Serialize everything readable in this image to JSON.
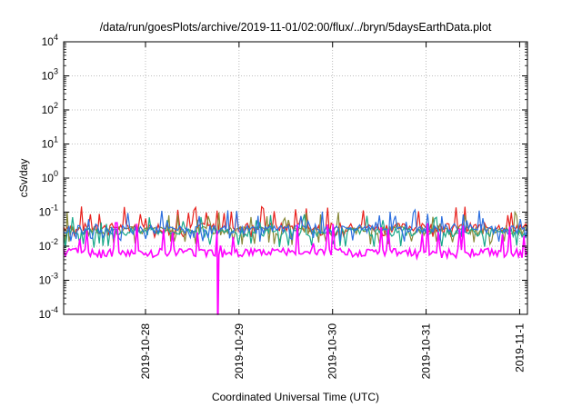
{
  "chart_data": {
    "type": "line",
    "title": "/data/run/goesPlots/archive/2019-11-01/02:00/flux/../bryn/5daysEarthData.plot",
    "xlabel": "Coordinated Universal Time (UTC)",
    "ylabel": "cSv/day",
    "yscale": "log",
    "ylim": [
      0.0001,
      10000
    ],
    "xlim": [
      "2019-10-27 03:00",
      "2019-11-01 02:00"
    ],
    "grid": true,
    "x_ticks": [
      {
        "date": "2019-10-28 00:00",
        "label": "2019-10-28"
      },
      {
        "date": "2019-10-29 00:00",
        "label": "2019-10-29"
      },
      {
        "date": "2019-10-30 00:00",
        "label": "2019-10-30"
      },
      {
        "date": "2019-10-31 00:00",
        "label": "2019-10-31"
      },
      {
        "date": "2019-11-01 00:00",
        "label": "2019-11-1"
      }
    ],
    "y_ticks": [
      {
        "value": 0.0001,
        "base": "10",
        "exp": "-4"
      },
      {
        "value": 0.001,
        "base": "10",
        "exp": "-3"
      },
      {
        "value": 0.01,
        "base": "10",
        "exp": "-2"
      },
      {
        "value": 0.1,
        "base": "10",
        "exp": "-1"
      },
      {
        "value": 1,
        "base": "10",
        "exp": "0"
      },
      {
        "value": 10,
        "base": "10",
        "exp": "1"
      },
      {
        "value": 100,
        "base": "10",
        "exp": "2"
      },
      {
        "value": 1000,
        "base": "10",
        "exp": "3"
      },
      {
        "value": 10000,
        "base": "10",
        "exp": "4"
      }
    ],
    "series": [
      {
        "color": "#e8201c",
        "baseline": 0.035,
        "spike_max": 0.15,
        "dip_min": 0.02
      },
      {
        "color": "#8a8a3a",
        "baseline": 0.028,
        "spike_max": 0.1,
        "dip_min": 0.012
      },
      {
        "color": "#1aa88a",
        "baseline": 0.025,
        "spike_max": 0.09,
        "dip_min": 0.01
      },
      {
        "color": "#2c6fe0",
        "baseline": 0.03,
        "spike_max": 0.12,
        "dip_min": 0.015
      },
      {
        "color": "#ff00ff",
        "baseline": 0.0065,
        "spike_max": 0.05,
        "dip_min": 0.005,
        "dropout": {
          "date": "2019-10-28 18:30",
          "value": 0.0001
        }
      }
    ]
  }
}
